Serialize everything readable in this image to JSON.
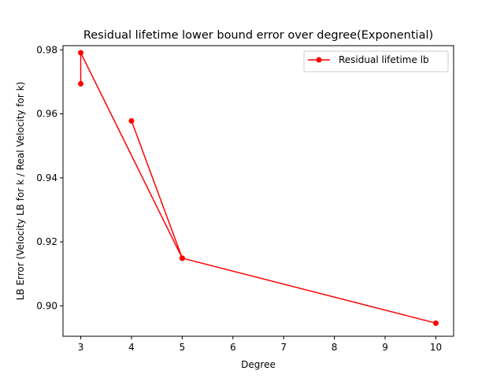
{
  "chart_data": {
    "type": "line",
    "title": "Residual lifetime lower bound error over degree(Exponential)",
    "xlabel": "Degree",
    "ylabel": "LB Error (Velocity LB for k / Real Velocity for k)",
    "xlim": [
      2.65,
      10.35
    ],
    "ylim": [
      0.8905,
      0.9813
    ],
    "xticks": [
      3,
      4,
      5,
      6,
      7,
      8,
      9,
      10
    ],
    "xtick_labels": [
      "3",
      "4",
      "5",
      "6",
      "7",
      "8",
      "9",
      "10"
    ],
    "yticks": [
      0.9,
      0.92,
      0.94,
      0.96,
      0.98
    ],
    "ytick_labels": [
      "0.90",
      "0.92",
      "0.94",
      "0.96",
      "0.98"
    ],
    "grid": false,
    "legend_position": "upper right",
    "series": [
      {
        "name": "Residual lifetime lb",
        "color": "#ff0000",
        "marker": "circle",
        "x": [
          3,
          3,
          5,
          4,
          5,
          10
        ],
        "y": [
          0.9694,
          0.9791,
          0.9149,
          0.9578,
          0.9149,
          0.8946
        ]
      }
    ]
  }
}
